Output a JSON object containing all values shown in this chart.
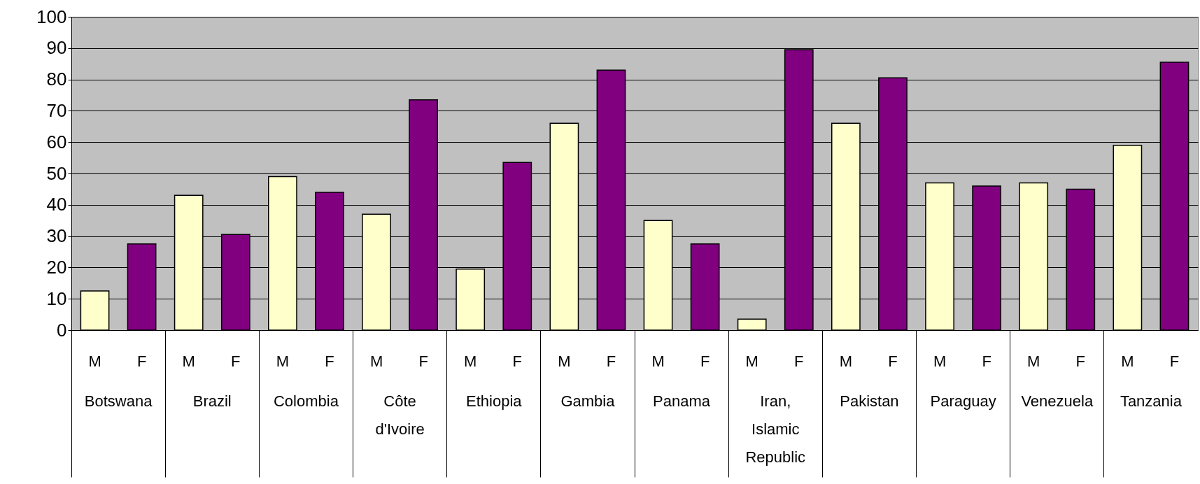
{
  "chart_data": {
    "type": "bar",
    "categories": [
      "Botswana",
      "Brazil",
      "Colombia",
      "Côte d'Ivoire",
      "Ethiopia",
      "Gambia",
      "Panama",
      "Iran, Islamic Republic",
      "Pakistan",
      "Paraguay",
      "Venezuela",
      "Tanzania"
    ],
    "series": [
      {
        "name": "M",
        "color": "#ffffcc",
        "values": [
          12.5,
          43,
          49,
          37,
          19.5,
          66,
          35,
          3.5,
          66,
          47,
          47,
          59
        ]
      },
      {
        "name": "F",
        "color": "#800080",
        "values": [
          27.5,
          30.5,
          44,
          73.5,
          53.5,
          83,
          27.5,
          89.5,
          80.5,
          46,
          45,
          85.5
        ]
      }
    ],
    "ylim": [
      0,
      100
    ],
    "yticks": [
      0,
      10,
      20,
      30,
      40,
      50,
      60,
      70,
      80,
      90,
      100
    ],
    "grid": "y",
    "legend": false
  }
}
